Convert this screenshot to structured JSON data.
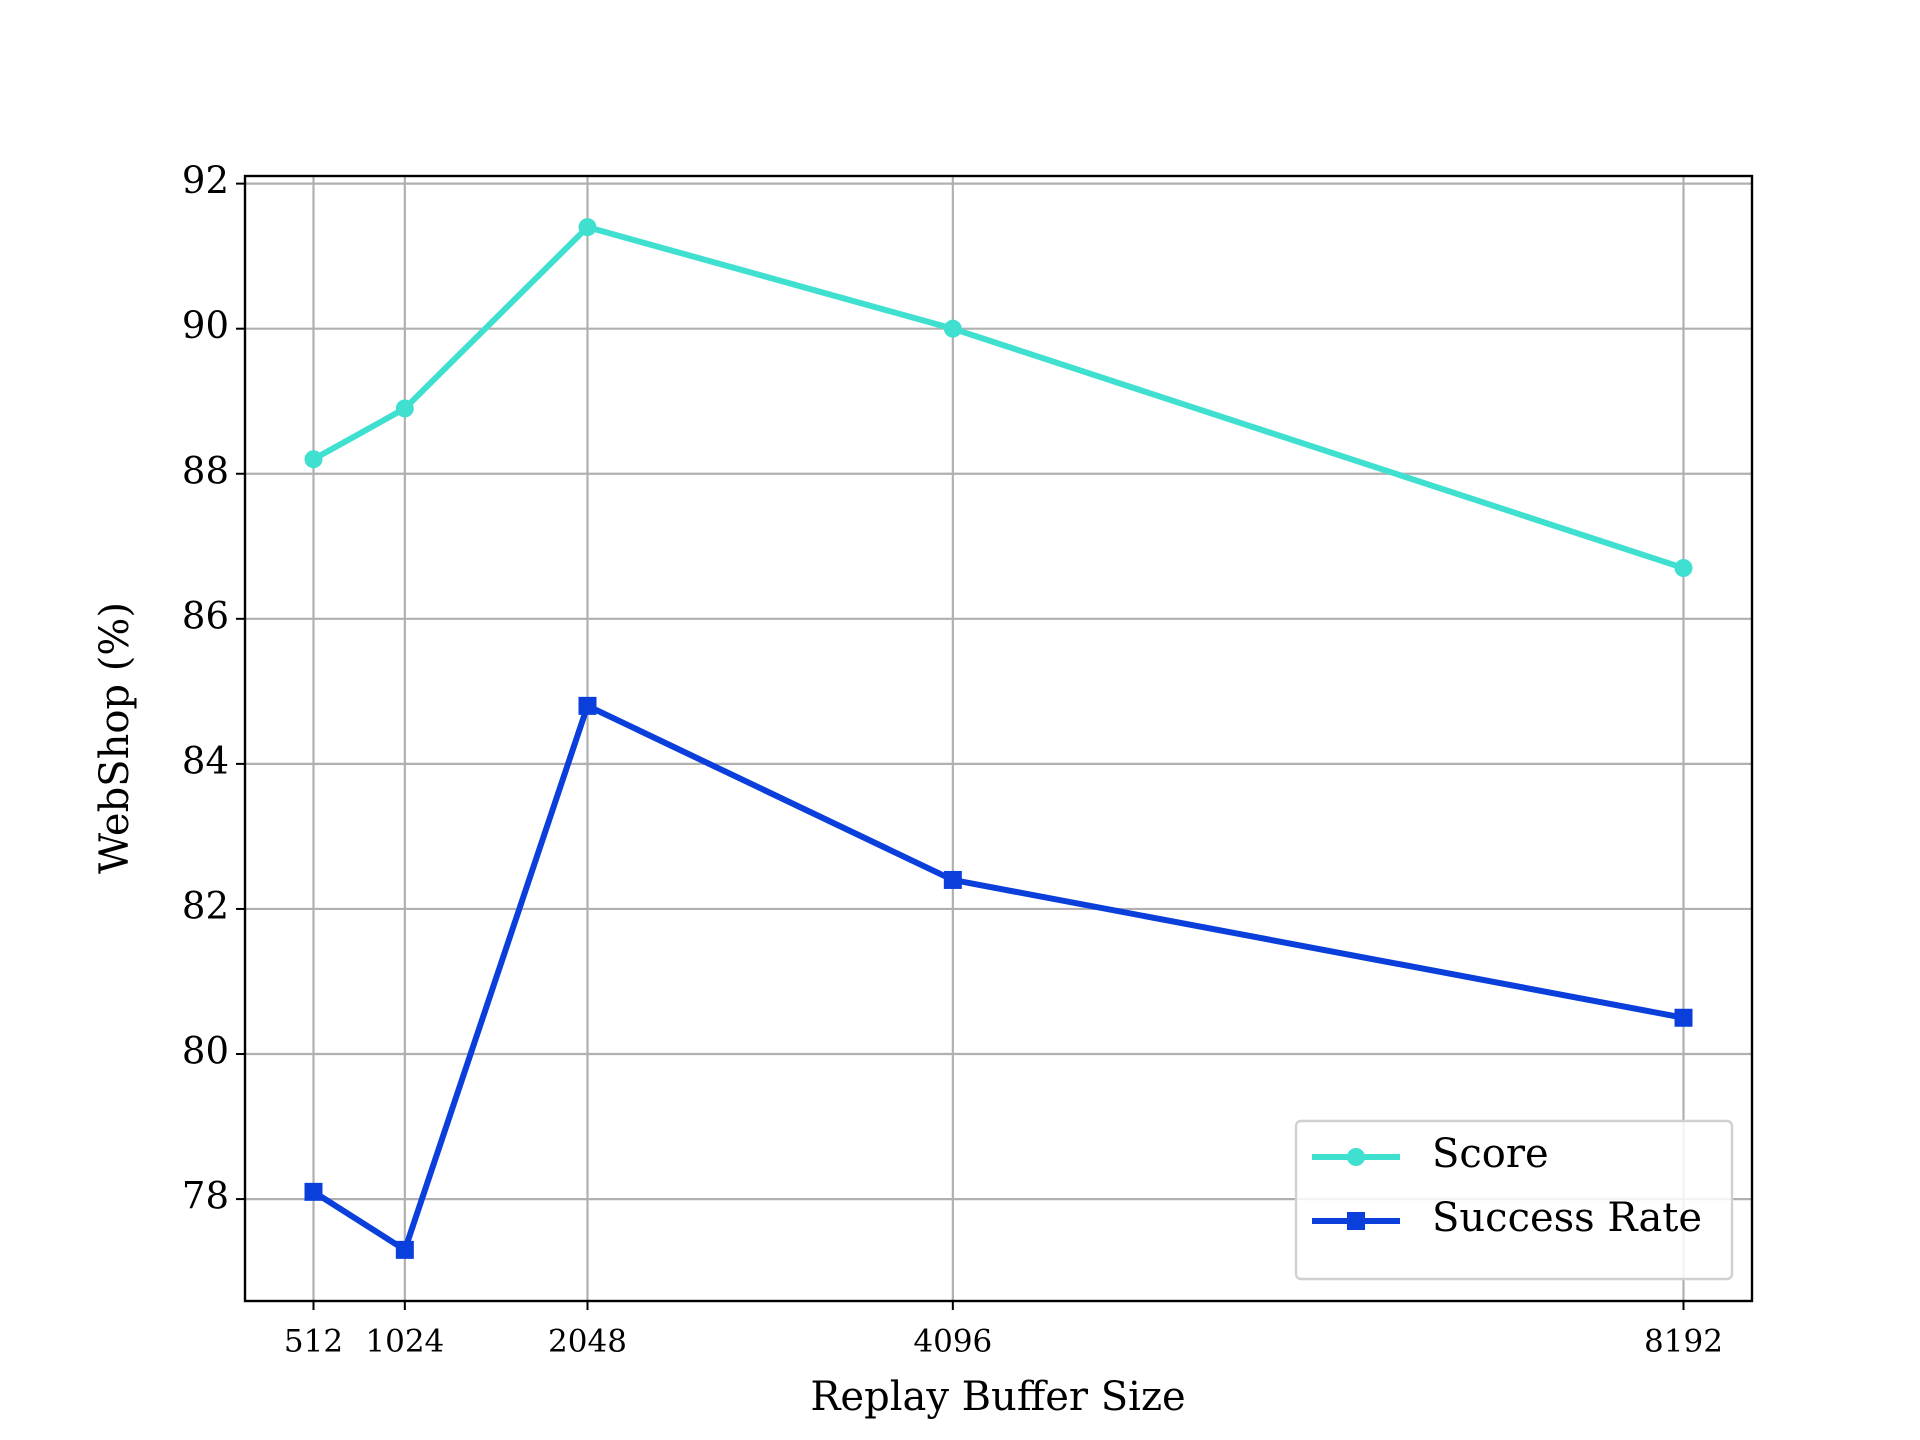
{
  "chart_data": {
    "type": "line",
    "x": [
      512,
      1024,
      2048,
      4096,
      8192
    ],
    "series": [
      {
        "name": "Score",
        "color": "#40e0d0",
        "marker": "circle",
        "values": [
          88.2,
          88.9,
          91.4,
          90.0,
          86.7
        ]
      },
      {
        "name": "Success Rate",
        "color": "#0a3fdc",
        "marker": "square",
        "values": [
          78.1,
          77.3,
          84.8,
          82.4,
          80.5
        ]
      }
    ],
    "x_label": "Replay Buffer Size",
    "y_label": "WebShop (%)",
    "xlim": [
      128,
      8576
    ],
    "ylim": [
      76.595,
      92.105
    ],
    "xticks": [
      512,
      1024,
      2048,
      4096,
      8192
    ],
    "yticks": [
      78,
      80,
      82,
      84,
      86,
      88,
      90,
      92
    ],
    "grid": true,
    "legend": "lower right"
  }
}
